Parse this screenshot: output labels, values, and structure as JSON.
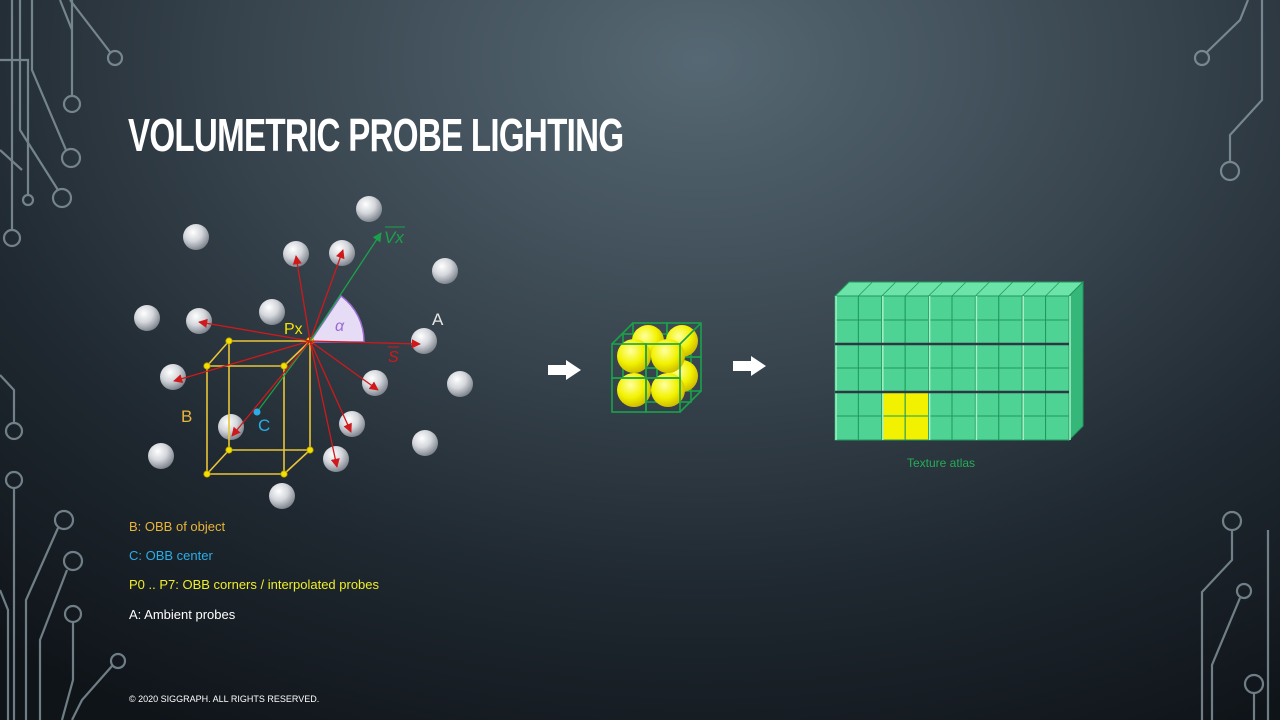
{
  "slide": {
    "title": "VOLUMETRIC PROBE LIGHTING",
    "footer": "© 2020 SIGGRAPH. ALL RIGHTS RESERVED."
  },
  "diagram": {
    "labels": {
      "vx": "Vx",
      "alpha": "α",
      "s": "S",
      "px": "Px",
      "a": "A",
      "b": "B",
      "c": "C"
    },
    "atlas_caption": "Texture atlas"
  },
  "legend": [
    {
      "text": "B: OBB of object",
      "color": "#e8b43a"
    },
    {
      "text": "C: OBB center",
      "color": "#29aee6"
    },
    {
      "text": "P0 .. P7: OBB corners / interpolated probes",
      "color": "#f0ee28"
    },
    {
      "text": "A: Ambient probes",
      "color": "#ffffff"
    }
  ],
  "colors": {
    "obb": "#e8c43a",
    "center": "#29aee6",
    "probe_highlight": "#f2f200",
    "ray": "#d0191b",
    "vector": "#1aa24a",
    "cone_fill": "#e6dcf6",
    "cone_stroke": "#9a6bd0",
    "atlas_cell": "#4fd394",
    "atlas_line": "#1f9a5c",
    "caption": "#27ab59"
  },
  "icons": [
    "circuit-decoration",
    "right-arrow-icon"
  ]
}
